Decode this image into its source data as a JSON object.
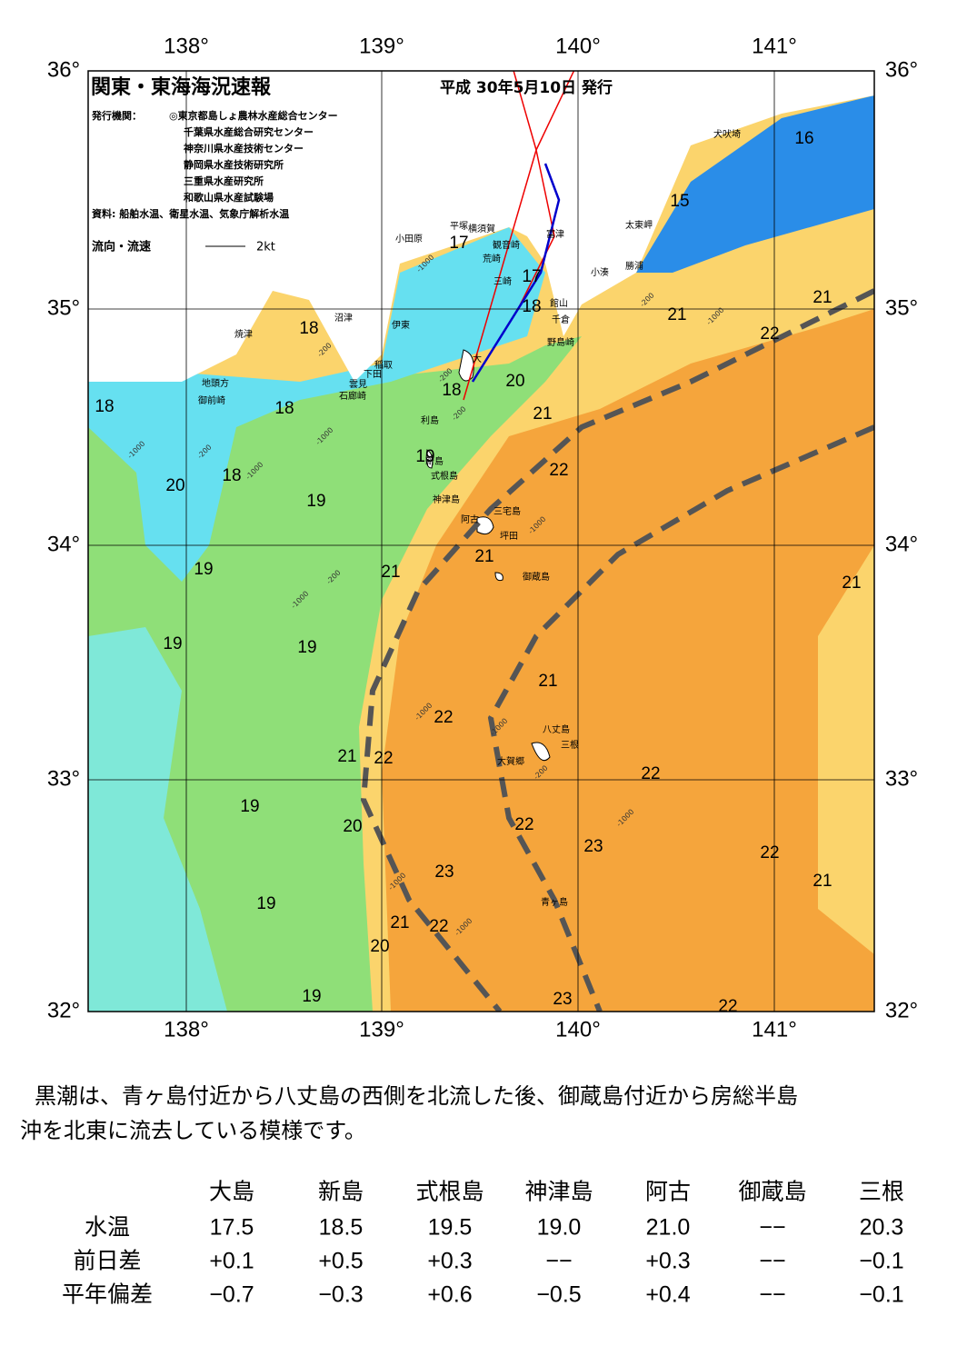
{
  "header": {
    "title": "関東・東海海況速報",
    "date": "平成 30年5月10日 発行",
    "issuer_label": "発行機関：",
    "issuers": [
      "◎東京都島しょ農林水産総合センター",
      "千葉県水産総合研究センター",
      "神奈川県水産技術センター",
      "静岡県水産技術研究所",
      "三重県水産研究所",
      "和歌山県水産試験場"
    ],
    "source": "資料: 船舶水温、衛星水温、気象庁解析水温",
    "current_legend": "流向・流速",
    "current_scale": "2kt"
  },
  "map": {
    "lon_labels": [
      "138°",
      "139°",
      "140°",
      "141°"
    ],
    "lat_labels": [
      "36°",
      "35°",
      "34°",
      "33°",
      "32°"
    ],
    "isotherm_labels": [
      "16",
      "15",
      "17",
      "17",
      "18",
      "18",
      "21",
      "21",
      "22",
      "18",
      "18",
      "18",
      "20",
      "21",
      "19",
      "22",
      "18",
      "20",
      "19",
      "21",
      "21",
      "19",
      "21",
      "19",
      "19",
      "21",
      "22",
      "21",
      "22",
      "22",
      "19",
      "20",
      "22",
      "23",
      "22",
      "23",
      "21",
      "19",
      "21",
      "22",
      "20",
      "23",
      "19",
      "22"
    ],
    "depth_labels": [
      "-1000",
      "-200",
      "-200",
      "-200",
      "-1000",
      "-200",
      "-1000",
      "-1000",
      "-200",
      "-1000",
      "-1000",
      "-1000",
      "-1000",
      "-200",
      "-1000",
      "-1000",
      "-1000",
      "-200",
      "-1000"
    ],
    "place_names": [
      "犬吠埼",
      "太東岬",
      "勝浦",
      "小湊",
      "富津",
      "館山",
      "千倉",
      "野島崎",
      "横須賀",
      "平塚",
      "小田原",
      "観音崎",
      "荒崎",
      "三崎",
      "沼津",
      "伊東",
      "焼津",
      "稲取",
      "下田",
      "雲見",
      "石廊崎",
      "地頭方",
      "御前崎",
      "大",
      "利島",
      "新島",
      "式根島",
      "神津島",
      "阿古",
      "三宅島",
      "坪田",
      "御蔵島",
      "八丈島",
      "三根",
      "大賀郷",
      "青ヶ島"
    ]
  },
  "summary": "黒潮は、青ヶ島付近から八丈島の西側を北流した後、御蔵島付近から房総半島沖を北東に流去している模様です。",
  "table": {
    "columns": [
      "大島",
      "新島",
      "式根島",
      "神津島",
      "阿古",
      "御蔵島",
      "三根"
    ],
    "rows": [
      {
        "label": "水温",
        "values": [
          "17.5",
          "18.5",
          "19.5",
          "19.0",
          "21.0",
          "−−",
          "20.3"
        ]
      },
      {
        "label": "前日差",
        "values": [
          "+0.1",
          "+0.5",
          "+0.3",
          "−−",
          "+0.3",
          "−−",
          "−0.1"
        ]
      },
      {
        "label": "平年偏差",
        "values": [
          "−0.7",
          "−0.3",
          "+0.6",
          "−0.5",
          "+0.4",
          "−−",
          "−0.1"
        ]
      }
    ]
  }
}
